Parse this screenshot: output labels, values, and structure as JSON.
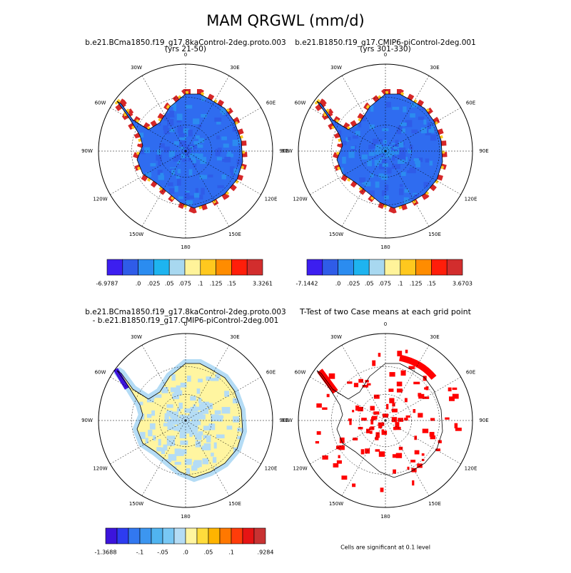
{
  "title": "MAM QRGWL (mm/d)",
  "lon_labels": [
    "0",
    "30E",
    "60E",
    "90E",
    "120E",
    "150E",
    "180",
    "150W",
    "120W",
    "90W",
    "60W",
    "30W"
  ],
  "panels": [
    {
      "title": [
        "b.e21.BCma1850.f19_g17.8kaControl-2deg.proto.003",
        "(yrs 21-50)"
      ],
      "colorbar": {
        "colors": [
          "#3c1ef0",
          "#2f5ce8",
          "#2b8cf0",
          "#1eb4f0",
          "#a8d8f0",
          "#fff39a",
          "#ffc81e",
          "#ff8c00",
          "#ff1e0a",
          "#d22d2d"
        ],
        "labels": [
          "-6.9787",
          null,
          ".0",
          ".025",
          ".05",
          ".075",
          ".1",
          ".125",
          ".15",
          null,
          "3.3261"
        ]
      }
    },
    {
      "title": [
        "b.e21.B1850.f19_g17.CMIP6-piControl-2deg.001",
        "(yrs 301-330)"
      ],
      "colorbar": {
        "colors": [
          "#3c1ef0",
          "#2f5ce8",
          "#2b8cf0",
          "#1eb4f0",
          "#a8d8f0",
          "#fff39a",
          "#ffc81e",
          "#ff8c00",
          "#ff1e0a",
          "#d22d2d"
        ],
        "labels": [
          "-7.1442",
          null,
          ".0",
          ".025",
          ".05",
          ".075",
          ".1",
          ".125",
          ".15",
          null,
          "3.6703"
        ]
      }
    },
    {
      "title": [
        "b.e21.BCma1850.f19_g17.8kaControl-2deg.proto.003",
        "- b.e21.B1850.f19_g17.CMIP6-piControl-2deg.001"
      ],
      "colorbar": {
        "colors": [
          "#3c14dc",
          "#2d3cf0",
          "#3278f0",
          "#3c96f0",
          "#50b4f0",
          "#78c8f5",
          "#b4dcf5",
          "#fff5a0",
          "#ffdc3c",
          "#ffb400",
          "#ff7800",
          "#ff3c0a",
          "#e61414",
          "#c83232"
        ],
        "labels": [
          "-1.3688",
          null,
          null,
          "-.1",
          null,
          "-.05",
          null,
          ".0",
          null,
          ".05",
          null,
          ".1",
          null,
          null,
          ".9284"
        ]
      }
    },
    {
      "title": [
        "T-Test of two Case means at each grid point"
      ],
      "footnote": "Cells are significant at 0.1 level"
    }
  ]
}
